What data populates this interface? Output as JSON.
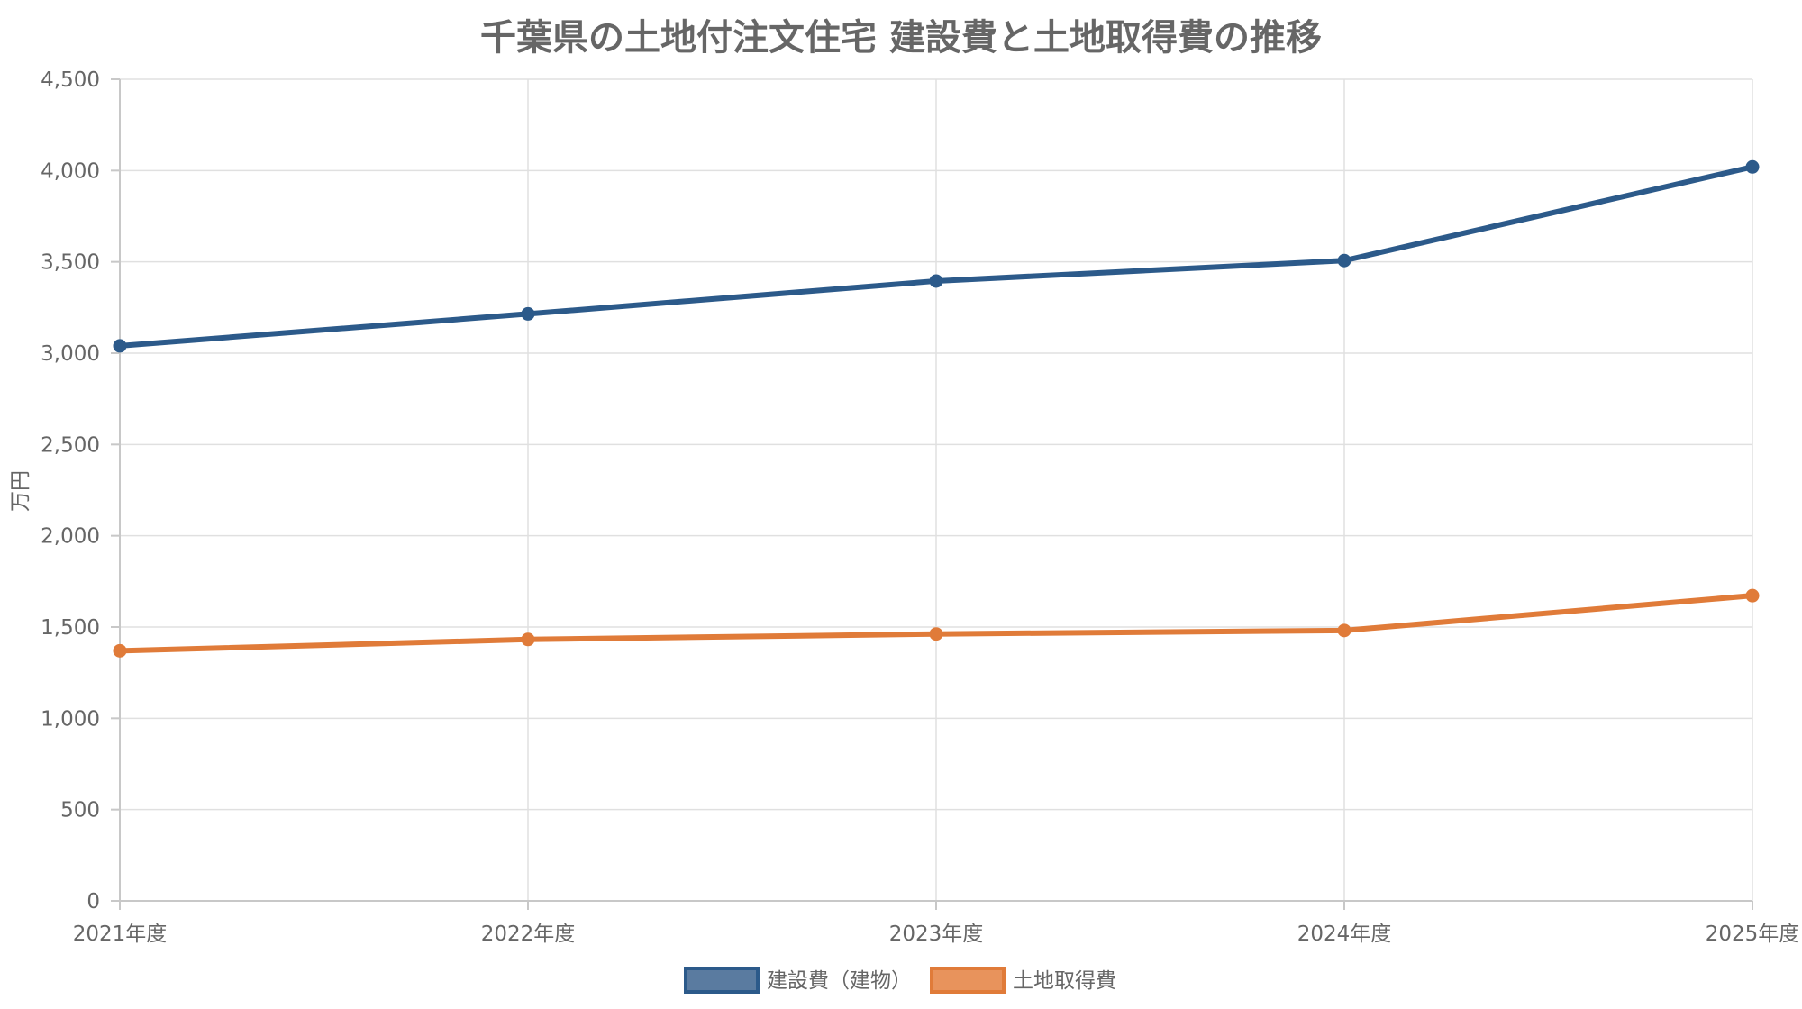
{
  "chart_data": {
    "type": "line",
    "title": "千葉県の土地付注文住宅 建設費と土地取得費の推移",
    "ylabel": "万円",
    "xlabel": "",
    "categories": [
      "2021年度",
      "2022年度",
      "2023年度",
      "2024年度",
      "2025年度"
    ],
    "ylim": [
      0,
      4500
    ],
    "yticks": [
      0,
      500,
      1000,
      1500,
      2000,
      2500,
      3000,
      3500,
      4000,
      4500
    ],
    "ytick_labels": [
      "0",
      "500",
      "1,000",
      "1,500",
      "2,000",
      "2,500",
      "3,000",
      "3,500",
      "4,000",
      "4,500"
    ],
    "grid": true,
    "legend_position": "bottom",
    "series": [
      {
        "name": "建設費（建物）",
        "color": "#2c5a8a",
        "fill": "#5a7ba0",
        "values": [
          3040,
          3215,
          3395,
          3507,
          4020
        ]
      },
      {
        "name": "土地取得費",
        "color": "#e07b39",
        "fill": "#e8935c",
        "values": [
          1370,
          1432,
          1462,
          1481,
          1672
        ]
      }
    ]
  }
}
